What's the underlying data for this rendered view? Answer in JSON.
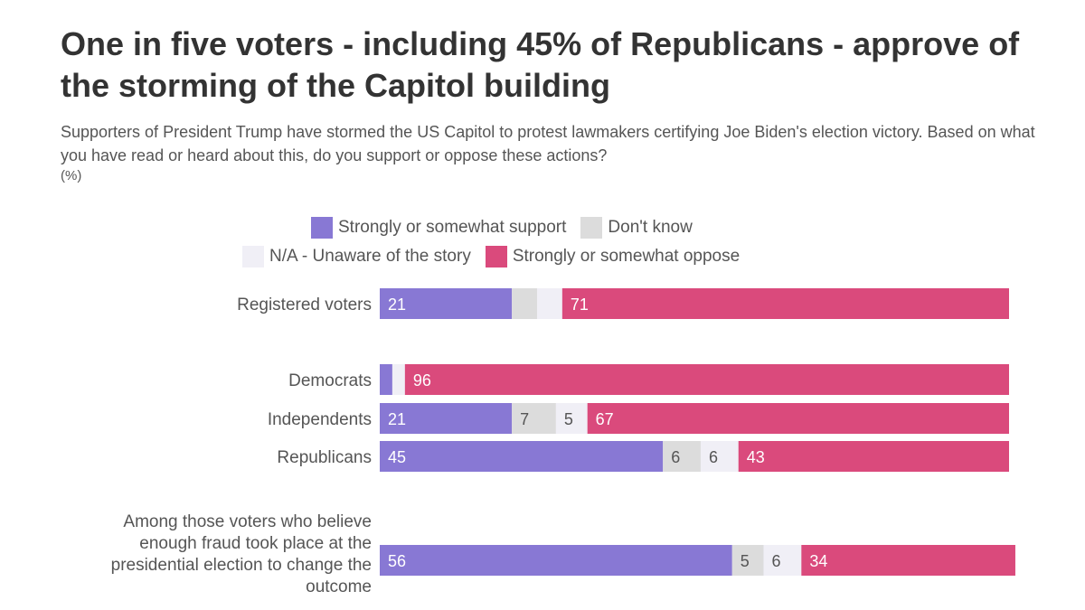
{
  "chart_data": {
    "type": "bar",
    "orientation": "horizontal",
    "stacked": true,
    "title": "One in five voters - including 45% of Republicans - approve of the storming of the Capitol building",
    "subtitle": "Supporters of President Trump have stormed the US Capitol to protest lawmakers certifying Joe Biden's election victory. Based on what you have read or heard about this, do you support or oppose these actions?",
    "unit": "(%)",
    "legend_placement": "top-center",
    "categories": [
      "Registered voters",
      "Democrats",
      "Independents",
      "Republicans",
      "Among those voters who believe enough fraud took place at the presidential election to change the outcome"
    ],
    "series": [
      {
        "name": "Strongly or somewhat support",
        "color": "#8878d4",
        "values": [
          21,
          2,
          21,
          45,
          56
        ],
        "labels": [
          "21",
          "",
          "21",
          "45",
          "56"
        ]
      },
      {
        "name": "Don't know",
        "color": "#dcdcdc",
        "values": [
          4,
          0,
          7,
          6,
          5
        ],
        "labels": [
          "",
          "",
          "7",
          "6",
          "5"
        ]
      },
      {
        "name": "N/A - Unaware of the story",
        "color": "#f0eff6",
        "values": [
          4,
          2,
          5,
          6,
          6
        ],
        "labels": [
          "",
          "",
          "5",
          "6",
          "6"
        ]
      },
      {
        "name": "Strongly or somewhat oppose",
        "color": "#da4a7c",
        "values": [
          71,
          96,
          67,
          43,
          34
        ],
        "labels": [
          "71",
          "96",
          "67",
          "43",
          "34"
        ]
      }
    ],
    "xlim": [
      0,
      100
    ]
  }
}
